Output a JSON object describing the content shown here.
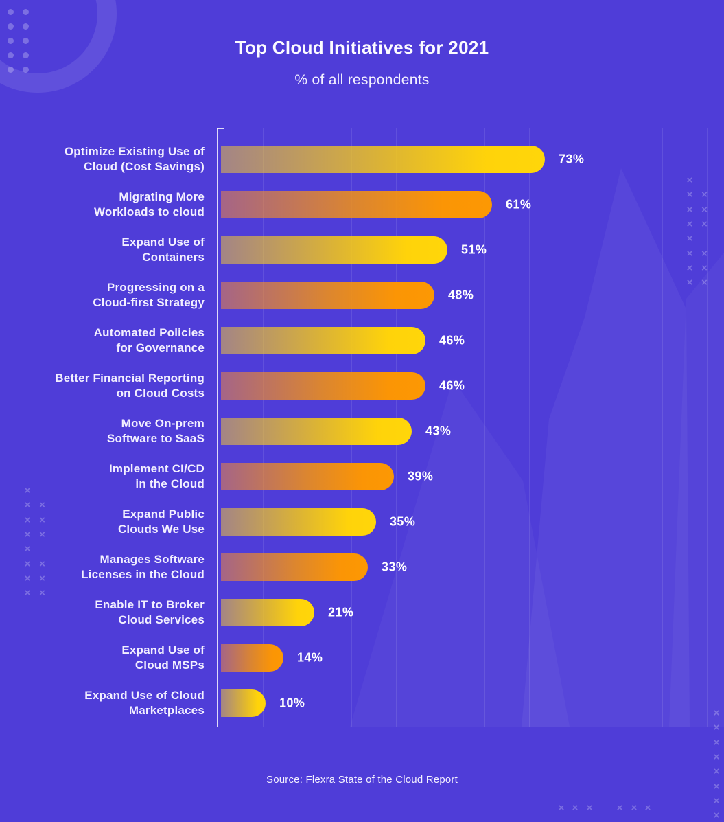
{
  "header": {
    "title": "Top Cloud Initiatives for 2021",
    "subtitle": "% of all respondents"
  },
  "footer": {
    "source": "Source: Flexra State of the Cloud Report"
  },
  "colors": {
    "background": "#4F3DD8",
    "bar_yellow": "#FFD60A",
    "bar_orange": "#FC9803",
    "text": "#FFFFFF",
    "axis": "#F8F6FF"
  },
  "chart_data": {
    "type": "bar",
    "orientation": "horizontal",
    "title": "Top Cloud Initiatives for 2021",
    "subtitle": "% of all respondents",
    "unit": "%",
    "xlim": [
      0,
      110
    ],
    "gridline_step_percent": 10,
    "grid": true,
    "legend": "none",
    "categories": [
      "Optimize Existing Use of Cloud (Cost Savings)",
      "Migrating More Workloads to cloud",
      "Expand Use of Containers",
      "Progressing on a Cloud-first Strategy",
      "Automated Policies for Governance",
      "Better Financial Reporting on Cloud Costs",
      "Move On-prem Software to SaaS",
      "Implement CI/CD in the Cloud",
      "Expand Public Clouds We Use",
      "Manages Software Licenses in the Cloud",
      "Enable IT to Broker Cloud Services",
      "Expand Use of Cloud MSPs",
      "Expand Use of Cloud Marketplaces"
    ],
    "values": [
      73,
      61,
      51,
      48,
      46,
      46,
      43,
      39,
      35,
      33,
      21,
      14,
      10
    ],
    "items": [
      {
        "label_lines": [
          "Optimize Existing Use of",
          "Cloud (Cost Savings)"
        ],
        "value": 73,
        "value_label": "73%",
        "color": "yellow"
      },
      {
        "label_lines": [
          "Migrating More",
          "Workloads to cloud"
        ],
        "value": 61,
        "value_label": "61%",
        "color": "orange"
      },
      {
        "label_lines": [
          "Expand Use of",
          "Containers"
        ],
        "value": 51,
        "value_label": "51%",
        "color": "yellow"
      },
      {
        "label_lines": [
          "Progressing on a",
          "Cloud-first Strategy"
        ],
        "value": 48,
        "value_label": "48%",
        "color": "orange"
      },
      {
        "label_lines": [
          "Automated Policies",
          "for Governance"
        ],
        "value": 46,
        "value_label": "46%",
        "color": "yellow"
      },
      {
        "label_lines": [
          "Better Financial Reporting",
          "on Cloud Costs"
        ],
        "value": 46,
        "value_label": "46%",
        "color": "orange"
      },
      {
        "label_lines": [
          "Move On-prem",
          "Software to SaaS"
        ],
        "value": 43,
        "value_label": "43%",
        "color": "yellow"
      },
      {
        "label_lines": [
          "Implement CI/CD",
          "in the Cloud"
        ],
        "value": 39,
        "value_label": "39%",
        "color": "orange"
      },
      {
        "label_lines": [
          "Expand Public",
          "Clouds We Use"
        ],
        "value": 35,
        "value_label": "35%",
        "color": "yellow"
      },
      {
        "label_lines": [
          "Manages Software",
          "Licenses in the Cloud"
        ],
        "value": 33,
        "value_label": "33%",
        "color": "orange"
      },
      {
        "label_lines": [
          "Enable IT to Broker",
          "Cloud Services"
        ],
        "value": 21,
        "value_label": "21%",
        "color": "yellow"
      },
      {
        "label_lines": [
          "Expand Use of",
          "Cloud MSPs"
        ],
        "value": 14,
        "value_label": "14%",
        "color": "orange"
      },
      {
        "label_lines": [
          "Expand Use of Cloud",
          "Marketplaces"
        ],
        "value": 10,
        "value_label": "10%",
        "color": "yellow"
      }
    ]
  }
}
